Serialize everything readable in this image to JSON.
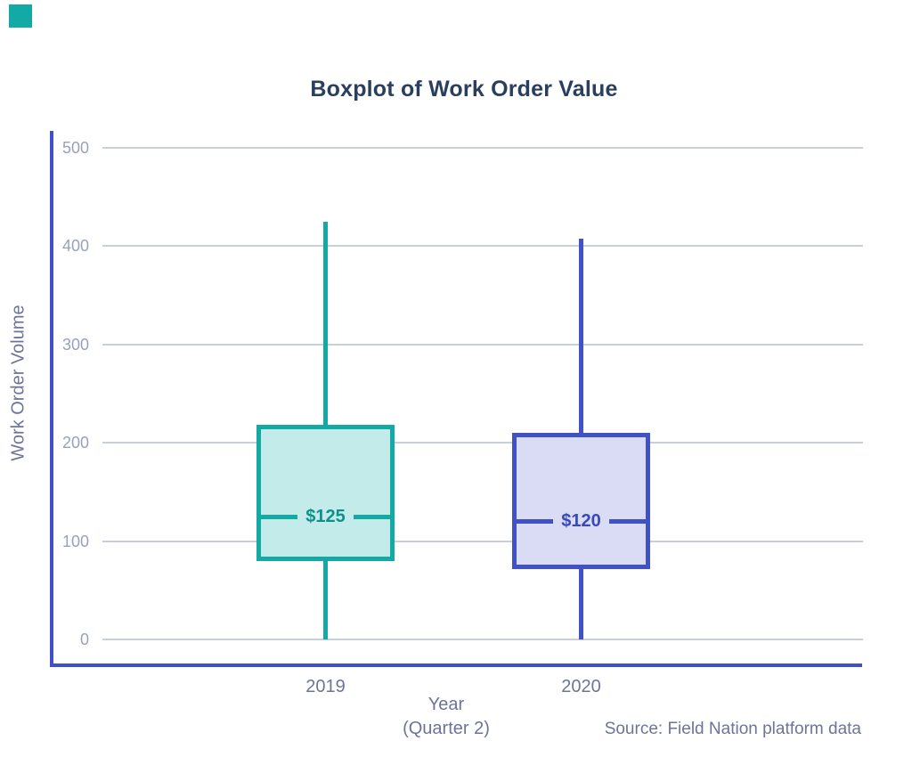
{
  "page": {
    "background": "#ffffff"
  },
  "brand_mark": {
    "color": "#13a9a4"
  },
  "colors": {
    "title": "#2a3f5f",
    "axis_line": "#4050c8",
    "gridline": "#c9cedb",
    "tick_label": "#98a1bd",
    "axis_label": "#6e7499",
    "source": "#6e7499"
  },
  "chart_data": {
    "type": "boxplot",
    "title": "Boxplot of Work Order Value",
    "ylabel": "Work Order Volume",
    "xlabel_lines": [
      "Year",
      "(Quarter 2)"
    ],
    "source_note": "Source: Field Nation platform data",
    "categories": [
      "2019",
      "2020"
    ],
    "yticks": [
      0,
      100,
      200,
      300,
      400,
      500
    ],
    "ylim": [
      0,
      545
    ],
    "grid": true,
    "legend": "none",
    "series": [
      {
        "name": "2019",
        "min": 0,
        "q1": 80,
        "median": 125,
        "q3": 218,
        "max": 425,
        "median_label": "$125",
        "stroke": "#13a9a4",
        "fill": "#c2ebe9",
        "label_color": "#0e918d"
      },
      {
        "name": "2020",
        "min": 0,
        "q1": 72,
        "median": 120,
        "q3": 210,
        "max": 408,
        "median_label": "$120",
        "stroke": "#4052c5",
        "fill": "#d9dcf4",
        "label_color": "#3949ba"
      }
    ]
  }
}
